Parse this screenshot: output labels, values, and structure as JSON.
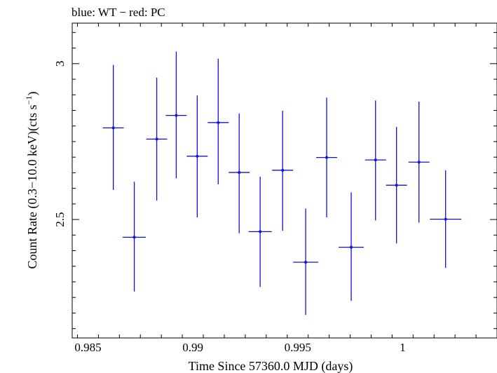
{
  "chart_data": {
    "type": "scatter",
    "title": "blue: WT − red: PC",
    "xlabel": "Time Since 57360.0 MJD (days)",
    "ylabel_main": "Count Rate (0.3−10.0 keV)(cts s",
    "ylabel_sup": "−1",
    "ylabel_close": ")",
    "xlim": [
      0.98425,
      1.0045
    ],
    "ylim": [
      2.12,
      3.13
    ],
    "xticks": [
      {
        "value": 0.985,
        "label": "0.985"
      },
      {
        "value": 0.99,
        "label": "0.99"
      },
      {
        "value": 0.995,
        "label": "0.995"
      },
      {
        "value": 1.0,
        "label": "1"
      }
    ],
    "yticks": [
      {
        "value": 2.5,
        "label": "2.5"
      },
      {
        "value": 3.0,
        "label": "3"
      }
    ],
    "grid": false,
    "series": [
      {
        "color": "#1010e0",
        "points": [
          {
            "x": 0.98621,
            "y": 2.794,
            "xerr": 0.0005,
            "ylo": 2.595,
            "yhi": 2.996
          },
          {
            "x": 0.98721,
            "y": 2.443,
            "xerr": 0.00055,
            "ylo": 2.269,
            "yhi": 2.621
          },
          {
            "x": 0.98828,
            "y": 2.758,
            "xerr": 0.0005,
            "ylo": 2.561,
            "yhi": 2.955
          },
          {
            "x": 0.98921,
            "y": 2.834,
            "xerr": 0.0005,
            "ylo": 2.632,
            "yhi": 3.039
          },
          {
            "x": 0.99021,
            "y": 2.703,
            "xerr": 0.0005,
            "ylo": 2.507,
            "yhi": 2.898
          },
          {
            "x": 0.99121,
            "y": 2.811,
            "xerr": 0.0005,
            "ylo": 2.613,
            "yhi": 3.016
          },
          {
            "x": 0.99221,
            "y": 2.651,
            "xerr": 0.0005,
            "ylo": 2.456,
            "yhi": 2.84
          },
          {
            "x": 0.99321,
            "y": 2.461,
            "xerr": 0.00055,
            "ylo": 2.284,
            "yhi": 2.637
          },
          {
            "x": 0.99428,
            "y": 2.658,
            "xerr": 0.0005,
            "ylo": 2.464,
            "yhi": 2.849
          },
          {
            "x": 0.99538,
            "y": 2.363,
            "xerr": 0.0006,
            "ylo": 2.194,
            "yhi": 2.535
          },
          {
            "x": 0.99638,
            "y": 2.699,
            "xerr": 0.0005,
            "ylo": 2.507,
            "yhi": 2.891
          },
          {
            "x": 0.99755,
            "y": 2.411,
            "xerr": 0.0006,
            "ylo": 2.239,
            "yhi": 2.587
          },
          {
            "x": 0.99871,
            "y": 2.691,
            "xerr": 0.0005,
            "ylo": 2.497,
            "yhi": 2.882
          },
          {
            "x": 0.99971,
            "y": 2.61,
            "xerr": 0.0005,
            "ylo": 2.423,
            "yhi": 2.797
          },
          {
            "x": 1.00078,
            "y": 2.684,
            "xerr": 0.0005,
            "ylo": 2.49,
            "yhi": 2.878
          },
          {
            "x": 1.00205,
            "y": 2.501,
            "xerr": 0.00075,
            "ylo": 2.345,
            "yhi": 2.658
          }
        ]
      }
    ]
  }
}
